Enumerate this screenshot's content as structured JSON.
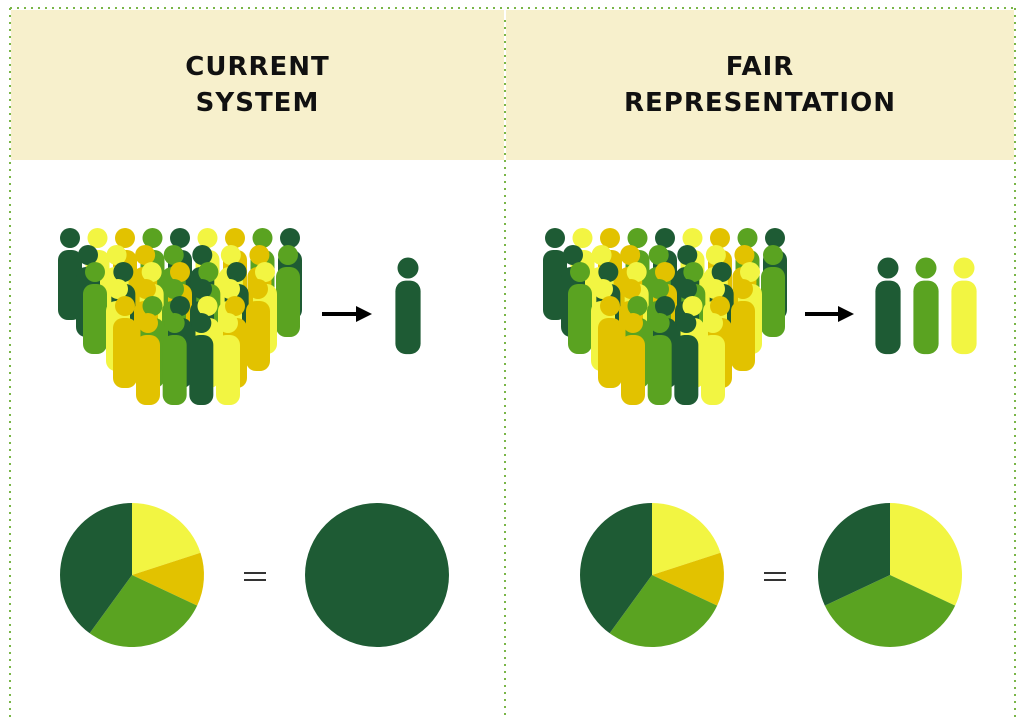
{
  "panels": [
    {
      "title": "CURRENT SYSTEM",
      "pies": [
        {
          "values": [
            20,
            12,
            28,
            40
          ],
          "colors": [
            "#f2f542",
            "#e2c200",
            "#5aa321",
            "#1e5b34"
          ]
        },
        {
          "values": [
            100
          ],
          "colors": [
            "#1e5b34"
          ]
        }
      ]
    },
    {
      "title": "FAIR REPRESENTATION",
      "pies": [
        {
          "values": [
            20,
            12,
            28,
            40
          ],
          "colors": [
            "#f2f542",
            "#e2c200",
            "#5aa321",
            "#1e5b34"
          ]
        },
        {
          "values": [
            32,
            36,
            32
          ],
          "colors": [
            "#f2f542",
            "#5aa321",
            "#1e5b34"
          ]
        }
      ]
    }
  ]
}
